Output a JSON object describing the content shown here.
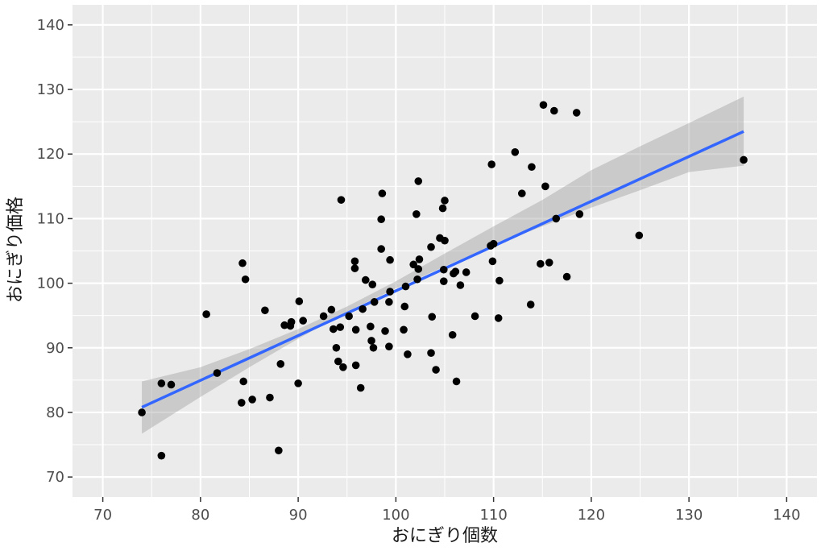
{
  "chart_data": {
    "type": "scatter",
    "xlabel": "おにぎり個数",
    "ylabel": "おにぎり価格",
    "xlim": [
      66.9,
      143.1
    ],
    "ylim": [
      66.9,
      143.1
    ],
    "x_ticks": [
      70,
      80,
      90,
      100,
      110,
      120,
      130,
      140
    ],
    "y_ticks": [
      70,
      80,
      90,
      100,
      110,
      120,
      130,
      140
    ],
    "x_tick_labels": [
      "70",
      "80",
      "90",
      "100",
      "110",
      "120",
      "130",
      "140"
    ],
    "y_tick_labels": [
      "70",
      "80",
      "90",
      "100",
      "110",
      "120",
      "130",
      "140"
    ],
    "grid": true,
    "legend": "none",
    "colors": {
      "panel_background": "#ebebeb",
      "grid": "#ffffff",
      "points": "#000000",
      "fit_line": "#3366ff",
      "confidence_band": "#999999"
    },
    "points": [
      [
        74.0,
        80.0
      ],
      [
        76.0,
        84.5
      ],
      [
        76.0,
        73.3
      ],
      [
        77.0,
        84.3
      ],
      [
        80.6,
        95.2
      ],
      [
        81.7,
        86.1
      ],
      [
        84.2,
        81.5
      ],
      [
        84.3,
        103.1
      ],
      [
        84.4,
        84.8
      ],
      [
        84.6,
        100.6
      ],
      [
        85.3,
        82.0
      ],
      [
        86.6,
        95.8
      ],
      [
        87.1,
        82.3
      ],
      [
        88.0,
        74.1
      ],
      [
        88.2,
        87.5
      ],
      [
        88.6,
        93.5
      ],
      [
        89.2,
        93.4
      ],
      [
        89.3,
        94.0
      ],
      [
        90.0,
        84.5
      ],
      [
        90.1,
        97.2
      ],
      [
        90.5,
        94.2
      ],
      [
        92.6,
        94.9
      ],
      [
        93.4,
        95.9
      ],
      [
        93.6,
        92.9
      ],
      [
        93.9,
        90.0
      ],
      [
        94.1,
        87.9
      ],
      [
        94.3,
        93.2
      ],
      [
        94.6,
        87.0
      ],
      [
        94.4,
        112.9
      ],
      [
        95.2,
        94.9
      ],
      [
        95.8,
        103.4
      ],
      [
        95.8,
        102.3
      ],
      [
        95.9,
        92.8
      ],
      [
        95.9,
        87.3
      ],
      [
        96.4,
        83.8
      ],
      [
        96.6,
        96.0
      ],
      [
        96.9,
        100.5
      ],
      [
        97.4,
        93.3
      ],
      [
        97.5,
        91.1
      ],
      [
        97.6,
        99.8
      ],
      [
        97.8,
        97.1
      ],
      [
        97.7,
        90.0
      ],
      [
        98.5,
        105.3
      ],
      [
        98.5,
        109.9
      ],
      [
        98.6,
        113.9
      ],
      [
        98.9,
        92.6
      ],
      [
        99.3,
        97.1
      ],
      [
        99.3,
        90.2
      ],
      [
        99.4,
        98.7
      ],
      [
        99.4,
        103.6
      ],
      [
        100.8,
        92.8
      ],
      [
        100.9,
        96.4
      ],
      [
        101.0,
        99.5
      ],
      [
        101.2,
        89.0
      ],
      [
        101.8,
        102.9
      ],
      [
        102.1,
        110.7
      ],
      [
        102.2,
        100.6
      ],
      [
        102.3,
        102.2
      ],
      [
        102.3,
        115.8
      ],
      [
        102.4,
        103.7
      ],
      [
        103.6,
        105.6
      ],
      [
        103.6,
        89.2
      ],
      [
        103.7,
        94.8
      ],
      [
        104.1,
        86.6
      ],
      [
        104.5,
        107.0
      ],
      [
        104.8,
        111.6
      ],
      [
        104.9,
        102.1
      ],
      [
        104.9,
        100.3
      ],
      [
        105.0,
        112.8
      ],
      [
        105.0,
        106.6
      ],
      [
        105.8,
        92.0
      ],
      [
        105.9,
        101.5
      ],
      [
        106.1,
        101.8
      ],
      [
        106.2,
        84.8
      ],
      [
        106.6,
        99.7
      ],
      [
        107.2,
        101.7
      ],
      [
        108.1,
        94.9
      ],
      [
        109.7,
        105.8
      ],
      [
        109.8,
        118.4
      ],
      [
        109.9,
        103.4
      ],
      [
        110.0,
        106.1
      ],
      [
        110.5,
        94.6
      ],
      [
        110.6,
        100.4
      ],
      [
        112.2,
        120.3
      ],
      [
        112.9,
        113.9
      ],
      [
        113.8,
        96.7
      ],
      [
        113.9,
        118.0
      ],
      [
        114.8,
        103.0
      ],
      [
        115.1,
        127.6
      ],
      [
        115.3,
        115.0
      ],
      [
        115.7,
        103.2
      ],
      [
        116.2,
        126.7
      ],
      [
        116.4,
        110.0
      ],
      [
        117.5,
        101.0
      ],
      [
        118.5,
        126.4
      ],
      [
        118.8,
        110.7
      ],
      [
        124.9,
        107.4
      ],
      [
        135.6,
        119.1
      ]
    ],
    "fit_line": {
      "x": [
        74.0,
        135.6
      ],
      "y": [
        80.8,
        123.5
      ]
    },
    "confidence_band": {
      "x": [
        74.0,
        80.0,
        85.0,
        90.0,
        95.0,
        100.0,
        105.0,
        110.0,
        115.0,
        120.0,
        125.0,
        130.0,
        135.6
      ],
      "lower": [
        76.7,
        82.4,
        87.0,
        91.4,
        95.6,
        99.2,
        102.6,
        105.9,
        108.8,
        111.7,
        114.4,
        117.2,
        118.2
      ],
      "upper": [
        84.8,
        87.0,
        89.8,
        92.9,
        96.4,
        100.3,
        104.6,
        108.8,
        112.9,
        117.5,
        121.2,
        124.8,
        128.9
      ]
    }
  }
}
